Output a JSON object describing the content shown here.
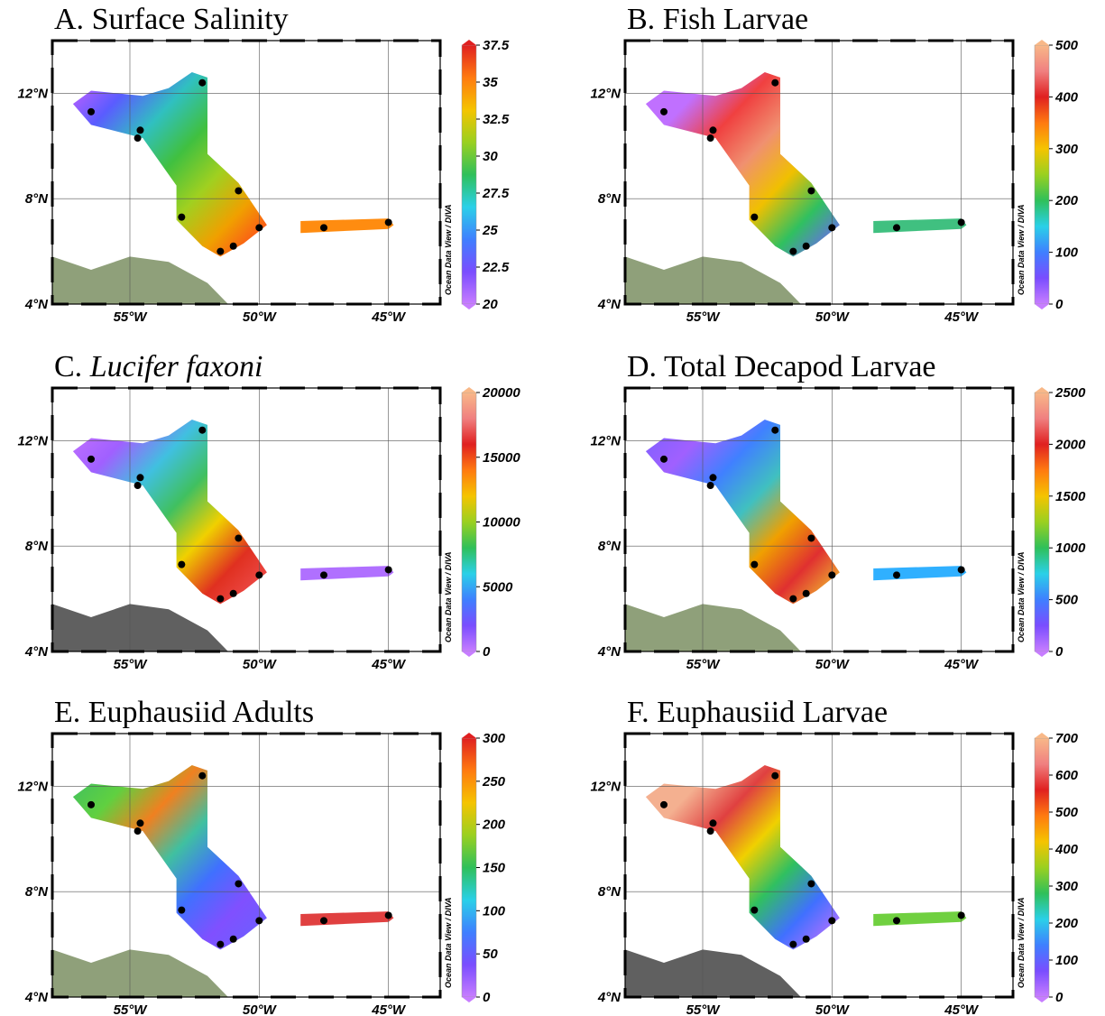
{
  "map": {
    "xlim": [
      -58,
      -43
    ],
    "ylim": [
      4,
      14
    ],
    "lon_ticks": [
      {
        "value": -55,
        "label": "55°W"
      },
      {
        "value": -50,
        "label": "50°W"
      },
      {
        "value": -45,
        "label": "45°W"
      }
    ],
    "lat_ticks": [
      {
        "value": 12,
        "label": "12°N"
      },
      {
        "value": 8,
        "label": "8°N"
      },
      {
        "value": 4,
        "label": "4°N"
      }
    ],
    "source": "Ocean Data View / DIVA"
  },
  "panels": [
    {
      "label": "A.",
      "title": "Surface Salinity",
      "italic": false,
      "colorbar": {
        "lim": [
          20,
          37.5
        ],
        "ticks": [
          20,
          22.5,
          25,
          27.5,
          30,
          32.5,
          35,
          37.5
        ]
      }
    },
    {
      "label": "B.",
      "title": "Fish Larvae",
      "italic": false,
      "colorbar": {
        "lim": [
          0,
          500
        ],
        "ticks": [
          0,
          100,
          200,
          300,
          400,
          500
        ]
      }
    },
    {
      "label": "C.",
      "title": "Lucifer faxoni",
      "italic": true,
      "colorbar": {
        "lim": [
          0,
          20000
        ],
        "ticks": [
          0,
          5000,
          10000,
          15000,
          20000
        ]
      }
    },
    {
      "label": "D.",
      "title": "Total Decapod Larvae",
      "italic": false,
      "colorbar": {
        "lim": [
          0,
          2500
        ],
        "ticks": [
          0,
          500,
          1000,
          1500,
          2000,
          2500
        ]
      }
    },
    {
      "label": "E.",
      "title": "Euphausiid Adults",
      "italic": false,
      "colorbar": {
        "lim": [
          0,
          300
        ],
        "ticks": [
          0,
          50,
          100,
          150,
          200,
          250,
          300
        ]
      }
    },
    {
      "label": "F.",
      "title": "Euphausiid Larvae",
      "italic": false,
      "colorbar": {
        "lim": [
          0,
          700
        ],
        "ticks": [
          0,
          100,
          200,
          300,
          400,
          500,
          600,
          700
        ]
      }
    }
  ]
}
